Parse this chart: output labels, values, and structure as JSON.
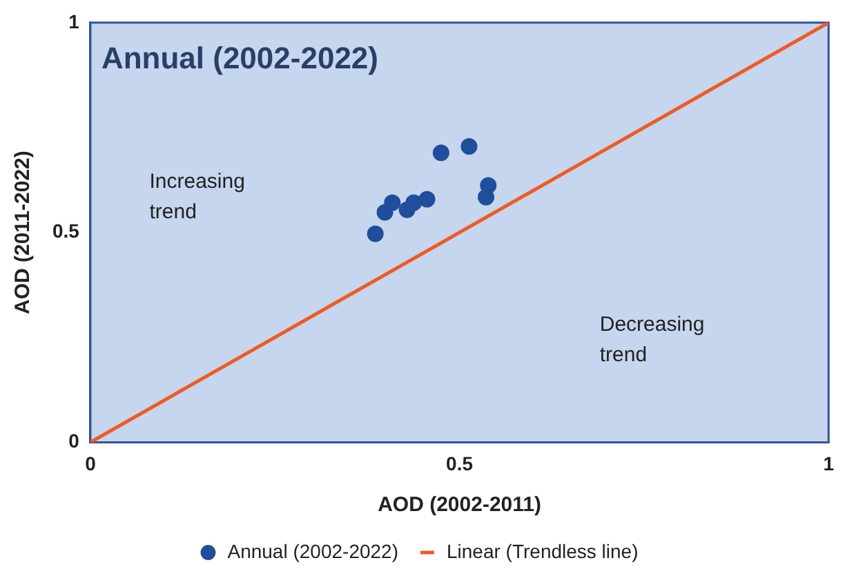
{
  "chart_data": {
    "type": "scatter",
    "title": "Annual (2002-2022)",
    "xlabel": "AOD (2002-2011)",
    "ylabel": "AOD (2011-2022)",
    "xlim": [
      0,
      1
    ],
    "ylim": [
      0,
      1
    ],
    "xticks": [
      0,
      0.5,
      1
    ],
    "yticks": [
      0,
      0.5,
      1
    ],
    "grid": false,
    "legend": "bottom",
    "annotations": [
      "Increasing trend",
      "Decreasing trend"
    ],
    "series": [
      {
        "name": "Annual (2002-2022)",
        "marker": "circle",
        "color": "#1f4e9c",
        "x": [
          0.386,
          0.399,
          0.409,
          0.429,
          0.438,
          0.456,
          0.475,
          0.513,
          0.539,
          0.536
        ],
        "values": [
          0.497,
          0.548,
          0.571,
          0.554,
          0.571,
          0.579,
          0.69,
          0.705,
          0.612,
          0.584
        ]
      },
      {
        "name": "Linear (Trendless line)",
        "type": "line",
        "marker": "none",
        "color": "#f05a22",
        "x": [
          0,
          1
        ],
        "values": [
          0,
          1
        ]
      }
    ]
  }
}
